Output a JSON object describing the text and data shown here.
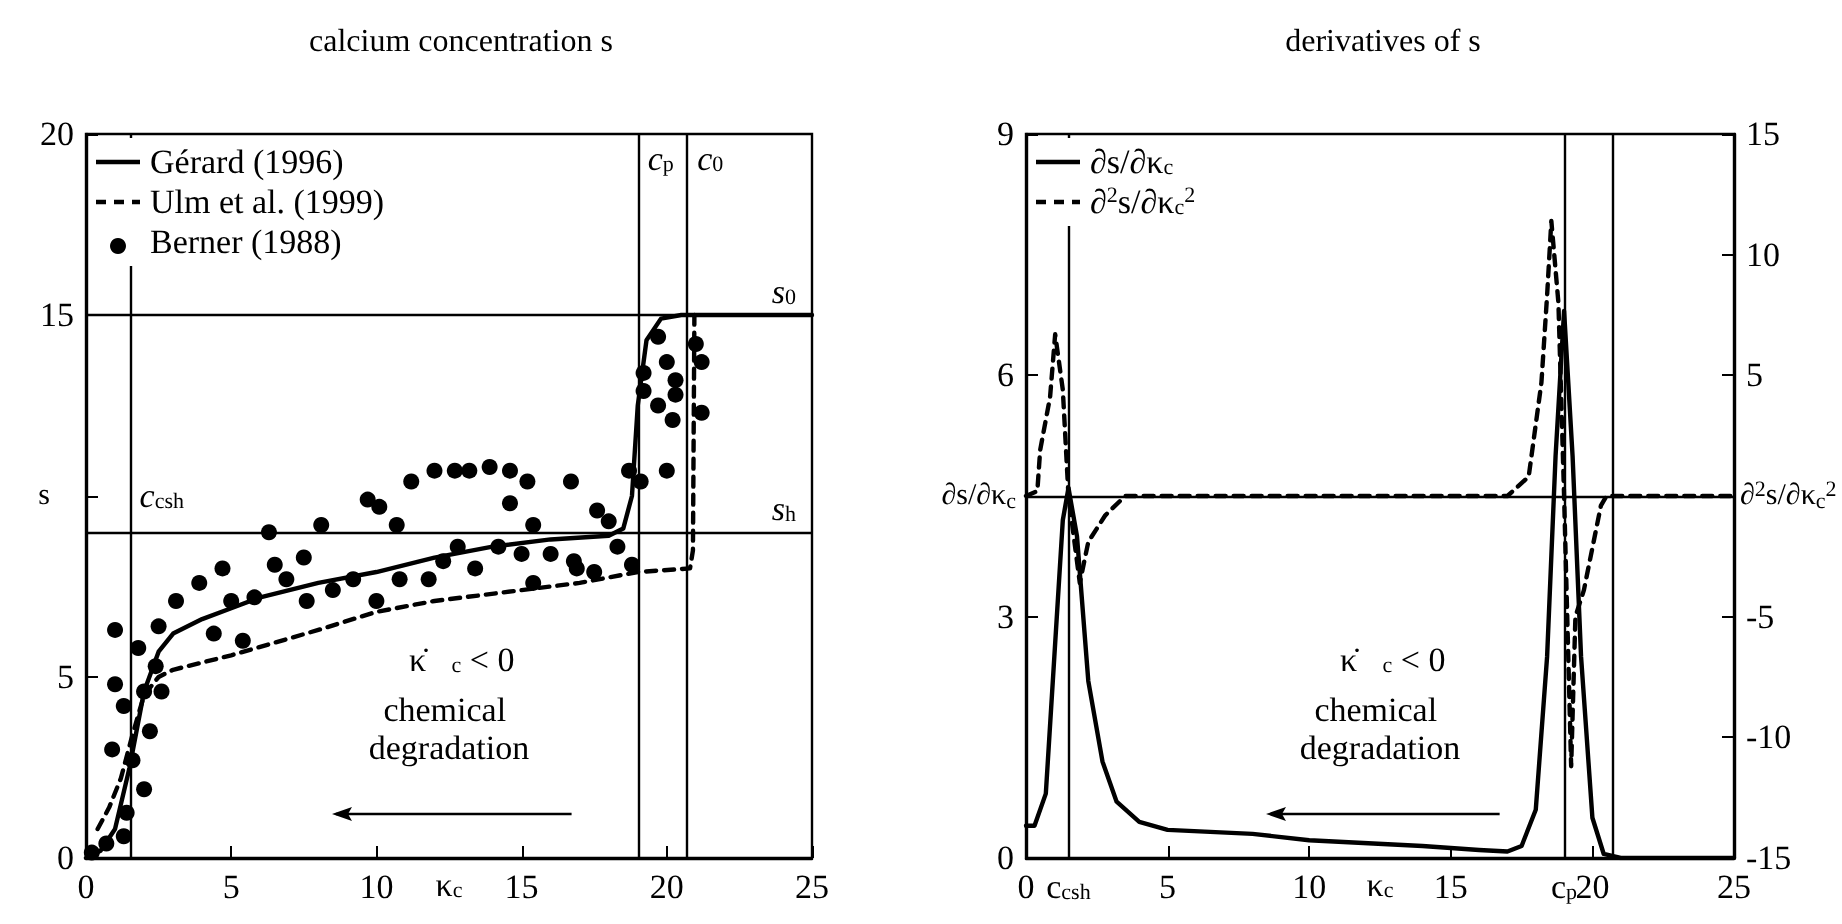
{
  "chart_data": [
    {
      "type": "line",
      "title": "calcium concentration s",
      "xlabel": "κ$_{c}$",
      "ylabel": "s",
      "xlim": [
        0,
        25
      ],
      "xticks": [
        0,
        5,
        10,
        15,
        20,
        25
      ],
      "ylim": [
        0,
        20
      ],
      "yticks": [
        0,
        5,
        {
          "value": 10,
          "label": null
        },
        15,
        20
      ],
      "grid": false,
      "legend": "top left",
      "series": [
        {
          "name": "Gérard (1996)",
          "color": "#000000",
          "line_style": "solid",
          "x": [
            0,
            0.5,
            1,
            1.5,
            2,
            2.5,
            3,
            4,
            5,
            6,
            8,
            10,
            12,
            14,
            16,
            18,
            18.5,
            18.8,
            19,
            19.3,
            19.8,
            20.5,
            25
          ],
          "values": [
            0,
            0.2,
            0.8,
            2.5,
            4.6,
            5.7,
            6.2,
            6.6,
            6.9,
            7.2,
            7.6,
            7.9,
            8.3,
            8.6,
            8.8,
            8.9,
            9.1,
            10,
            12.5,
            14.3,
            14.9,
            15,
            15
          ]
        },
        {
          "name": "Ulm et al. (1999)",
          "color": "#000000",
          "line_style": "dashed",
          "x": [
            0.4,
            0.8,
            1.2,
            1.6,
            2,
            2.5,
            3,
            5,
            8,
            10,
            12,
            15,
            17,
            19,
            20.8,
            20.9,
            20.95
          ],
          "values": [
            0.8,
            1.4,
            2.2,
            3.4,
            4.5,
            5,
            5.2,
            5.6,
            6.3,
            6.8,
            7.1,
            7.4,
            7.6,
            7.9,
            8,
            8.5,
            15
          ]
        },
        {
          "name": "Berner (1988)",
          "type": "scatter",
          "marker": "circle",
          "color": "#000000",
          "x": [
            0.2,
            0.7,
            0.9,
            1,
            1,
            1.3,
            1.3,
            1.4,
            1.6,
            1.8,
            2,
            2,
            2.2,
            2.4,
            2.5,
            2.6,
            3.1,
            3.9,
            4.4,
            4.7,
            5,
            5.4,
            5.8,
            6.3,
            6.5,
            6.9,
            7.5,
            7.6,
            8.1,
            8.5,
            9.2,
            9.7,
            10,
            10.1,
            10.7,
            10.8,
            11.2,
            11.8,
            12,
            12.3,
            12.7,
            12.8,
            13.2,
            13.4,
            13.9,
            14.2,
            14.6,
            14.6,
            15,
            15.2,
            15.4,
            15.4,
            16,
            16.7,
            16.8,
            16.9,
            17.5,
            17.6,
            18,
            18.3,
            18.7,
            18.8,
            19.1,
            19.2,
            19.2,
            19.7,
            19.7,
            20,
            20,
            20.2,
            20.3,
            20.3,
            21,
            21.2,
            21.2
          ],
          "values": [
            0.15,
            0.4,
            3,
            6.3,
            4.8,
            4.2,
            0.6,
            1.25,
            2.7,
            5.8,
            1.9,
            4.6,
            3.5,
            5.3,
            6.4,
            4.6,
            7.1,
            7.6,
            6.2,
            8,
            7.1,
            6,
            7.2,
            9,
            8.1,
            7.7,
            8.3,
            7.1,
            9.2,
            7.4,
            7.7,
            9.9,
            7.1,
            9.7,
            9.2,
            7.7,
            10.4,
            7.7,
            10.7,
            8.2,
            10.7,
            8.6,
            10.7,
            8,
            10.8,
            8.6,
            10.7,
            9.8,
            8.4,
            10.4,
            9.2,
            7.6,
            8.4,
            10.4,
            8.2,
            8,
            7.9,
            9.6,
            9.3,
            8.6,
            10.7,
            8.1,
            10.4,
            13.4,
            12.9,
            14.4,
            12.5,
            13.7,
            10.7,
            12.1,
            13.2,
            12.8,
            14.2,
            13.7,
            12.3
          ]
        }
      ],
      "ref_lines": [
        {
          "axis": "x",
          "value": 1.5,
          "label": "c$_{csh}$"
        },
        {
          "axis": "x",
          "value": 19,
          "label": "c$_{p}$"
        },
        {
          "axis": "x",
          "value": 20.7,
          "label": "c$_{0}$"
        },
        {
          "axis": "y",
          "value": 15,
          "label": "s$_{0}$"
        },
        {
          "axis": "y",
          "value": 9,
          "label": "s$_{h}$"
        }
      ],
      "annotations": [
        "κ̇$_{c}$ < 0",
        "chemical degradation"
      ]
    },
    {
      "type": "line",
      "title": "derivatives of s",
      "xlabel": "κ$_{c}$",
      "ylabel": "∂s/∂κ$_{c}$",
      "y2label": "∂$^{2}$s/∂κ$_{c}$$^{2}$",
      "xlim": [
        0,
        25
      ],
      "xticks": [
        0,
        {
          "value": 1.5,
          "label": "c$_{csh}$"
        },
        5,
        10,
        15,
        {
          "value": 19,
          "label": "c$_{p}$"
        },
        20,
        25
      ],
      "ylim": [
        0,
        9
      ],
      "yticks": [
        0,
        3,
        6,
        9
      ],
      "y2lim": [
        -15,
        15
      ],
      "y2ticks": [
        -15,
        -10,
        -5,
        5,
        10,
        15
      ],
      "grid": false,
      "legend": "top left",
      "series": [
        {
          "name": "∂s/∂κ$_{c}$",
          "color": "#000000",
          "line_style": "solid",
          "x": [
            0,
            0.3,
            0.7,
            1,
            1.3,
            1.5,
            1.8,
            2.2,
            2.7,
            3.2,
            4,
            5,
            8,
            10,
            14,
            16,
            17,
            17.5,
            18,
            18.4,
            18.7,
            19,
            19.3,
            19.6,
            20,
            20.4,
            21,
            25
          ],
          "values": [
            0.4,
            0.4,
            0.8,
            2.5,
            4.2,
            4.6,
            4,
            2.2,
            1.2,
            0.7,
            0.45,
            0.35,
            0.3,
            0.22,
            0.15,
            0.1,
            0.08,
            0.15,
            0.6,
            2.5,
            5,
            6.8,
            5,
            2.5,
            0.5,
            0.05,
            0,
            0
          ]
        },
        {
          "name": "∂$^{2}$s/∂κ$_{c}$$^{2}$",
          "axis": "y2",
          "color": "#000000",
          "line_style": "dashed",
          "x": [
            0,
            0.4,
            0.5,
            0.85,
            1.03,
            1.3,
            1.5,
            1.9,
            2.2,
            2.8,
            3.5,
            17,
            17.75,
            18.2,
            18.4,
            18.55,
            18.8,
            19,
            19.25,
            19.4,
            19.7,
            20.3,
            20.5,
            25
          ],
          "values": [
            0,
            0.2,
            1.9,
            4.1,
            6.7,
            4.4,
            0,
            -3.6,
            -1.9,
            -0.8,
            0,
            0,
            0.8,
            4.7,
            8.3,
            11.4,
            8,
            0,
            -11.2,
            -5,
            -3.9,
            -0.4,
            0,
            0
          ]
        }
      ],
      "ref_lines": [
        {
          "axis": "x",
          "value": 1.5
        },
        {
          "axis": "x",
          "value": 19
        },
        {
          "axis": "x",
          "value": 20.7
        },
        {
          "axis": "y2",
          "value": 0
        }
      ],
      "annotations": [
        "κ̇$_{c}$ < 0",
        "chemical degradation"
      ]
    }
  ]
}
